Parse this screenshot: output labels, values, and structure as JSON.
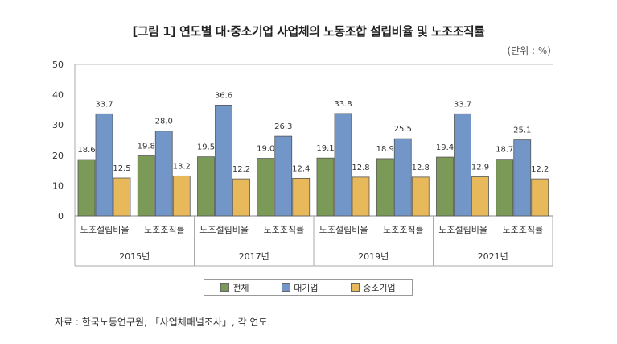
{
  "chart_data": {
    "type": "bar",
    "title": "[그림 1] 연도별 대·중소기업 사업체의 노동조합 설립비율 및 노조조직률",
    "unit": "(단위 : %)",
    "years": [
      "2015년",
      "2017년",
      "2019년",
      "2021년"
    ],
    "categories": [
      "노조설립비율",
      "노조조직률",
      "노조설립비율",
      "노조조직률",
      "노조설립비율",
      "노조조직률",
      "노조설립비율",
      "노조조직률"
    ],
    "series": [
      {
        "name": "전체",
        "color": "#7c9a57",
        "values": [
          18.6,
          19.8,
          19.5,
          19.0,
          19.1,
          18.9,
          19.4,
          18.7
        ]
      },
      {
        "name": "대기업",
        "color": "#7396c8",
        "values": [
          33.7,
          28.0,
          36.6,
          26.3,
          33.8,
          25.5,
          33.7,
          25.1
        ]
      },
      {
        "name": "중소기업",
        "color": "#e8b95b",
        "values": [
          12.5,
          13.2,
          12.2,
          12.4,
          12.8,
          12.8,
          12.9,
          12.2
        ]
      }
    ],
    "ylim": [
      0,
      50
    ],
    "yticks": [
      0,
      10,
      20,
      30,
      40,
      50
    ],
    "legend": "bottom"
  },
  "source": "자료 : 한국노동연구원, 「사업체패널조사」, 각 연도."
}
